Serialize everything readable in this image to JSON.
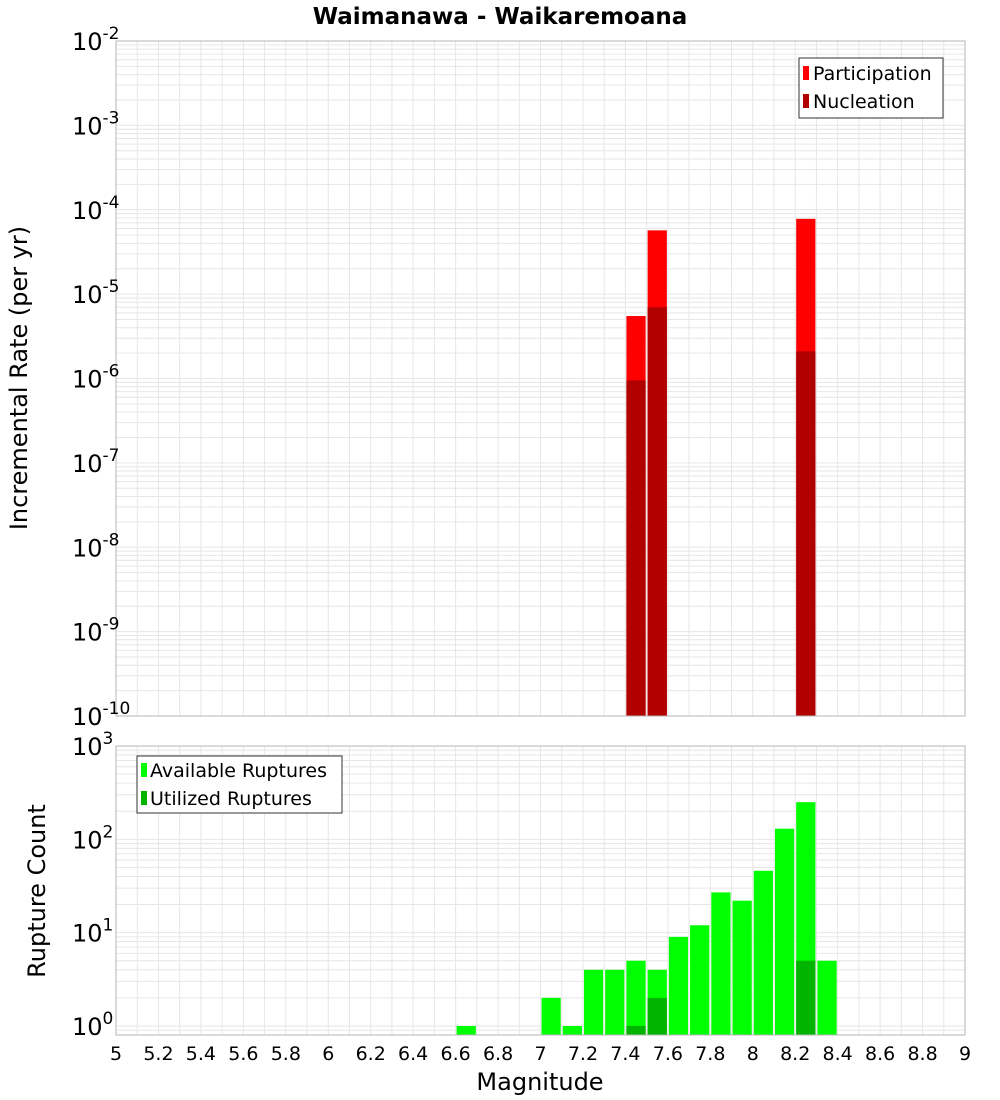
{
  "title": "Waimanawa - Waikaremoana",
  "colors": {
    "participation": "#ff0000",
    "nucleation": "#b00000",
    "available": "#00ff00",
    "utilized": "#00b400",
    "grid": "#e6e6e6",
    "frame": "#b4b4b4"
  },
  "chart_data": [
    {
      "type": "bar",
      "ylabel": "Incremental Rate (per yr)",
      "yscale": "log",
      "ylim": [
        1e-10,
        0.01
      ],
      "ytick_exponents": [
        "-10",
        "-9",
        "-8",
        "-7",
        "-6",
        "-5",
        "-4",
        "-3",
        "-2"
      ],
      "ytick_base": "10",
      "grid": true,
      "legend": {
        "position": "top-right",
        "entries": [
          "Participation",
          "Nucleation"
        ]
      },
      "bin_width": 0.1,
      "series": [
        {
          "name": "Participation",
          "x": [
            7.45,
            7.55,
            8.25
          ],
          "values": [
            5.5e-06,
            5.7e-05,
            7.8e-05
          ]
        },
        {
          "name": "Nucleation",
          "x": [
            7.45,
            7.55,
            8.25
          ],
          "values": [
            9.5e-07,
            7e-06,
            2.1e-06
          ]
        }
      ]
    },
    {
      "type": "bar",
      "xlabel": "Magnitude",
      "ylabel": "Rupture Count",
      "yscale": "log",
      "ylim": [
        0.8,
        1000
      ],
      "ytick_exponents": [
        "0",
        "1",
        "2",
        "3"
      ],
      "ytick_base": "10",
      "xlim": [
        5,
        9
      ],
      "xticks": [
        "5",
        "5.2",
        "5.4",
        "5.6",
        "5.8",
        "6",
        "6.2",
        "6.4",
        "6.6",
        "6.8",
        "7",
        "7.2",
        "7.4",
        "7.6",
        "7.8",
        "8",
        "8.2",
        "8.4",
        "8.6",
        "8.8",
        "9"
      ],
      "grid": true,
      "legend": {
        "position": "top-left",
        "entries": [
          "Available Ruptures",
          "Utilized Ruptures"
        ]
      },
      "bin_width": 0.1,
      "series": [
        {
          "name": "Available Ruptures",
          "x": [
            6.65,
            7.05,
            7.15,
            7.25,
            7.35,
            7.45,
            7.55,
            7.65,
            7.75,
            7.85,
            7.95,
            8.05,
            8.15,
            8.25,
            8.35
          ],
          "values": [
            1,
            2,
            1,
            4,
            4,
            5,
            4,
            9,
            12,
            27,
            22,
            46,
            130,
            250,
            5
          ]
        },
        {
          "name": "Utilized Ruptures",
          "x": [
            7.45,
            7.55,
            8.25
          ],
          "values": [
            1,
            2,
            5
          ]
        }
      ]
    }
  ]
}
